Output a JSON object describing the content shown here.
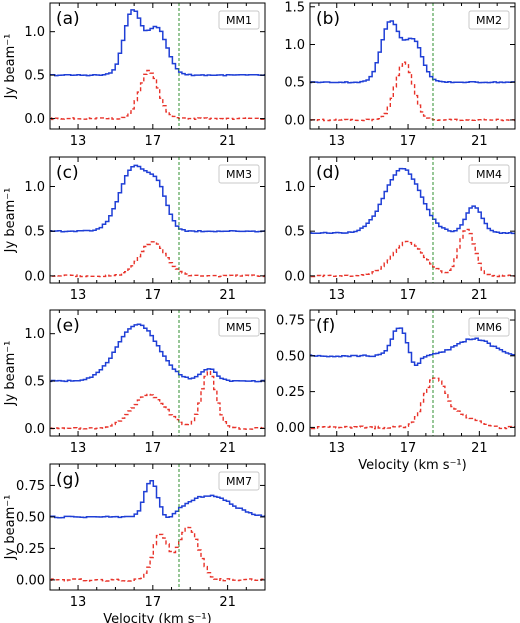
{
  "figure": {
    "ylabel": "Jy beam⁻¹",
    "xlabel": "Velocity (km s⁻¹)",
    "colors": {
      "spectrum_top": "#1f3fd6",
      "spectrum_bottom": "#e8332a",
      "vline": "#2f8f2f"
    }
  },
  "chart_data": [
    {
      "type": "line",
      "letter": "(a)",
      "name": "MM1",
      "xlim": [
        11.5,
        23.0
      ],
      "ylim": [
        -0.12,
        1.33
      ],
      "xticks": [
        13,
        17,
        21
      ],
      "yticks": [
        0.0,
        0.5,
        1.0
      ],
      "vline": 18.4,
      "blue": {
        "base": 0.5,
        "peaks": [
          [
            15.9,
            0.72,
            0.45
          ],
          [
            17.2,
            0.55,
            0.55
          ]
        ]
      },
      "red": {
        "base": 0.0,
        "peaks": [
          [
            16.8,
            0.55,
            0.5
          ]
        ]
      },
      "show_ylabel": true,
      "show_xlabel": false
    },
    {
      "type": "line",
      "letter": "(b)",
      "name": "MM2",
      "xlim": [
        11.5,
        23.0
      ],
      "ylim": [
        -0.12,
        1.55
      ],
      "xticks": [
        13,
        17,
        21
      ],
      "yticks": [
        0.0,
        0.5,
        1.0,
        1.5
      ],
      "vline": 18.4,
      "blue": {
        "base": 0.5,
        "peaks": [
          [
            16.0,
            0.8,
            0.5
          ],
          [
            17.3,
            0.55,
            0.5
          ]
        ]
      },
      "red": {
        "base": 0.0,
        "peaks": [
          [
            16.8,
            0.77,
            0.5
          ]
        ]
      },
      "show_ylabel": false,
      "show_xlabel": false
    },
    {
      "type": "line",
      "letter": "(c)",
      "name": "MM3",
      "xlim": [
        11.5,
        23.0
      ],
      "ylim": [
        -0.08,
        1.33
      ],
      "xticks": [
        13,
        17,
        21
      ],
      "yticks": [
        0.0,
        0.5,
        1.0
      ],
      "vline": 18.4,
      "blue": {
        "base": 0.5,
        "peaks": [
          [
            16.0,
            0.72,
            0.75
          ],
          [
            17.3,
            0.4,
            0.5
          ]
        ]
      },
      "red": {
        "base": 0.0,
        "peaks": [
          [
            17.0,
            0.38,
            0.7
          ]
        ]
      },
      "show_ylabel": true,
      "show_xlabel": false
    },
    {
      "type": "line",
      "letter": "(d)",
      "name": "MM4",
      "xlim": [
        11.5,
        23.0
      ],
      "ylim": [
        -0.08,
        1.33
      ],
      "xticks": [
        13,
        17,
        21
      ],
      "yticks": [
        0.0,
        0.5,
        1.0
      ],
      "vline": 18.4,
      "blue": {
        "base": 0.48,
        "peaks": [
          [
            16.7,
            0.72,
            1.0
          ],
          [
            20.7,
            0.3,
            0.45
          ]
        ]
      },
      "red": {
        "base": 0.0,
        "peaks": [
          [
            17.0,
            0.38,
            0.9
          ],
          [
            20.3,
            0.52,
            0.45
          ]
        ]
      },
      "show_ylabel": false,
      "show_xlabel": false
    },
    {
      "type": "line",
      "letter": "(e)",
      "name": "MM5",
      "xlim": [
        11.5,
        23.0
      ],
      "ylim": [
        -0.08,
        1.25
      ],
      "xticks": [
        13,
        17,
        21
      ],
      "yticks": [
        0.0,
        0.5,
        1.0
      ],
      "vline": 18.4,
      "blue": {
        "base": 0.5,
        "peaks": [
          [
            16.2,
            0.6,
            1.1
          ],
          [
            20.0,
            0.13,
            0.4
          ]
        ]
      },
      "red": {
        "base": 0.0,
        "peaks": [
          [
            16.8,
            0.35,
            0.9
          ],
          [
            20.0,
            0.6,
            0.4
          ]
        ]
      },
      "show_ylabel": true,
      "show_xlabel": false
    },
    {
      "type": "line",
      "letter": "(f)",
      "name": "MM6",
      "xlim": [
        11.5,
        23.0
      ],
      "ylim": [
        -0.06,
        0.82
      ],
      "xticks": [
        13,
        17,
        21
      ],
      "yticks": [
        0.0,
        0.25,
        0.5,
        0.75
      ],
      "vline": 18.4,
      "blue": {
        "base": 0.5,
        "peaks": [
          [
            16.5,
            0.2,
            0.4
          ],
          [
            17.4,
            -0.08,
            0.25
          ],
          [
            20.7,
            0.12,
            1.0
          ]
        ]
      },
      "red": {
        "base": 0.0,
        "peaks": [
          [
            18.5,
            0.34,
            0.6
          ],
          [
            20.0,
            0.08,
            0.8
          ]
        ]
      },
      "show_ylabel": false,
      "show_xlabel": true
    },
    {
      "type": "line",
      "letter": "(g)",
      "name": "MM7",
      "xlim": [
        11.5,
        23.0
      ],
      "ylim": [
        -0.08,
        0.92
      ],
      "xticks": [
        13,
        17,
        21
      ],
      "yticks": [
        0.0,
        0.25,
        0.5,
        0.75
      ],
      "vline": 18.4,
      "blue": {
        "base": 0.5,
        "peaks": [
          [
            16.9,
            0.28,
            0.35
          ],
          [
            17.8,
            -0.05,
            0.3
          ],
          [
            20.0,
            0.17,
            1.2
          ]
        ]
      },
      "red": {
        "base": 0.0,
        "peaks": [
          [
            17.4,
            0.36,
            0.4
          ],
          [
            18.9,
            0.42,
            0.55
          ]
        ]
      },
      "show_ylabel": true,
      "show_xlabel": true
    }
  ]
}
